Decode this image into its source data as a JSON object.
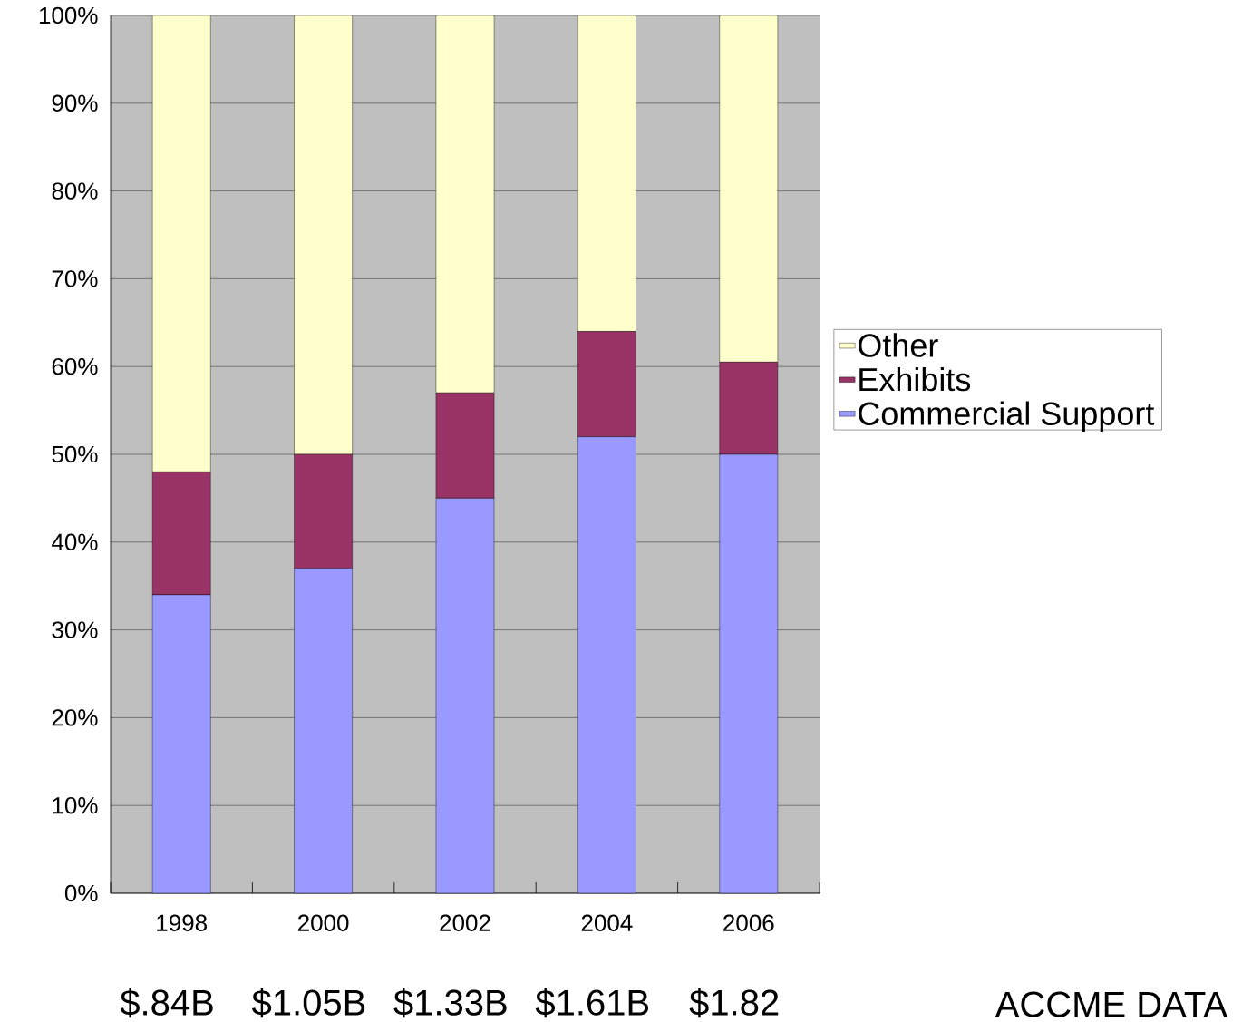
{
  "chart_data": {
    "type": "bar",
    "stacked": true,
    "categories": [
      "1998",
      "2000",
      "2002",
      "2004",
      "2006"
    ],
    "series": [
      {
        "name": "Commercial Support",
        "color": "#9999ff",
        "values": [
          34,
          37,
          45,
          52,
          50
        ]
      },
      {
        "name": "Exhibits",
        "color": "#993366",
        "values": [
          14,
          13,
          12,
          12,
          10.5
        ]
      },
      {
        "name": "Other",
        "color": "#ffffcc",
        "values": [
          52,
          50,
          43,
          36,
          39.5
        ]
      }
    ],
    "ylim": [
      0,
      100
    ],
    "yticks": [
      {
        "value": 0,
        "label": "0%"
      },
      {
        "value": 10,
        "label": "10%"
      },
      {
        "value": 20,
        "label": "20%"
      },
      {
        "value": 30,
        "label": "30%"
      },
      {
        "value": 40,
        "label": "40%"
      },
      {
        "value": 50,
        "label": "50%"
      },
      {
        "value": 60,
        "label": "60%"
      },
      {
        "value": 70,
        "label": "70%"
      },
      {
        "value": 80,
        "label": "80%"
      },
      {
        "value": 90,
        "label": "90%"
      },
      {
        "value": 100,
        "label": "100%"
      }
    ],
    "grid": "y",
    "legend": "right",
    "annotations": [
      "$.84B",
      "$1.05B",
      "$1.33B",
      "$1.61B",
      "$1.82",
      "ACCME DATA"
    ]
  }
}
